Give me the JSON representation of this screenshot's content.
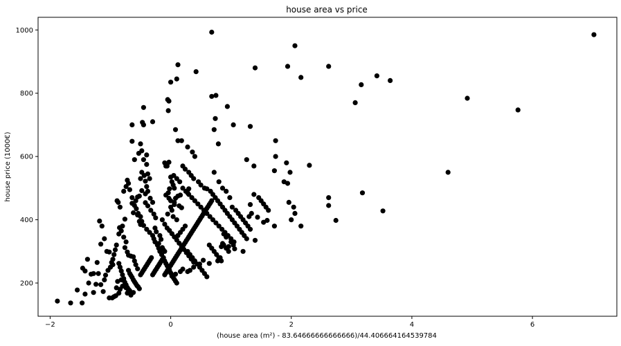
{
  "chart_data": {
    "type": "scatter",
    "title": "house area vs price",
    "xlabel": "(house area (m²) - 83.64666666666666)/44.406664164539784",
    "ylabel": "house price (1000€)",
    "xlim": [
      -2.2,
      7.4
    ],
    "ylim": [
      95,
      1040
    ],
    "xticks": [
      -2,
      0,
      2,
      4,
      6
    ],
    "xtick_labels": [
      "−2",
      "0",
      "2",
      "4",
      "6"
    ],
    "yticks": [
      200,
      400,
      600,
      800,
      1000
    ],
    "ytick_labels": [
      "200",
      "400",
      "600",
      "800",
      "1000"
    ],
    "grid": false,
    "legend": "none",
    "marker_color": "#000000",
    "points": [
      [
        -1.88,
        143
      ],
      [
        -1.66,
        137
      ],
      [
        -1.47,
        137
      ],
      [
        -1.55,
        178
      ],
      [
        -1.42,
        165
      ],
      [
        -1.36,
        200
      ],
      [
        -1.46,
        247
      ],
      [
        -1.42,
        238
      ],
      [
        -1.38,
        275
      ],
      [
        -1.32,
        228
      ],
      [
        -1.22,
        265
      ],
      [
        -1.28,
        230
      ],
      [
        -1.2,
        230
      ],
      [
        -1.14,
        380
      ],
      [
        -1.18,
        396
      ],
      [
        -1.16,
        323
      ],
      [
        -1.1,
        340
      ],
      [
        -1.06,
        300
      ],
      [
        -1.02,
        298
      ],
      [
        -1.12,
        173
      ],
      [
        -1.28,
        170
      ],
      [
        -1.24,
        196
      ],
      [
        -0.96,
        258
      ],
      [
        -1.02,
        153
      ],
      [
        -0.97,
        153
      ],
      [
        -0.94,
        157
      ],
      [
        -0.91,
        160
      ],
      [
        -0.86,
        168
      ],
      [
        -0.88,
        205
      ],
      [
        -0.82,
        210
      ],
      [
        -0.78,
        208
      ],
      [
        -0.74,
        185
      ],
      [
        -0.7,
        178
      ],
      [
        -0.66,
        162
      ],
      [
        -0.62,
        170
      ],
      [
        -0.9,
        185
      ],
      [
        -0.84,
        180
      ],
      [
        -0.8,
        190
      ],
      [
        -0.76,
        195
      ],
      [
        -0.72,
        168
      ],
      [
        -0.68,
        172
      ],
      [
        -0.89,
        460
      ],
      [
        -0.87,
        455
      ],
      [
        -0.84,
        440
      ],
      [
        -0.85,
        375
      ],
      [
        -0.82,
        365
      ],
      [
        -0.8,
        380
      ],
      [
        -0.86,
        355
      ],
      [
        -0.78,
        345
      ],
      [
        -0.74,
        330
      ],
      [
        -0.76,
        312
      ],
      [
        -0.72,
        298
      ],
      [
        -0.7,
        288
      ],
      [
        -0.66,
        285
      ],
      [
        -0.62,
        283
      ],
      [
        -0.6,
        270
      ],
      [
        -0.58,
        258
      ],
      [
        -0.55,
        245
      ],
      [
        -0.78,
        490
      ],
      [
        -0.74,
        505
      ],
      [
        -0.72,
        525
      ],
      [
        -0.7,
        515
      ],
      [
        -0.68,
        495
      ],
      [
        -0.64,
        470
      ],
      [
        -0.6,
        445
      ],
      [
        -0.57,
        435
      ],
      [
        -0.54,
        420
      ],
      [
        -0.52,
        395
      ],
      [
        -0.5,
        385
      ],
      [
        -0.76,
        402
      ],
      [
        -0.62,
        422
      ],
      [
        -0.64,
        452
      ],
      [
        -0.58,
        460
      ],
      [
        -0.55,
        472
      ],
      [
        -0.52,
        475
      ],
      [
        -0.48,
        492
      ],
      [
        -0.5,
        530
      ],
      [
        -0.6,
        590
      ],
      [
        -0.53,
        610
      ],
      [
        -0.48,
        618
      ],
      [
        -0.45,
        590
      ],
      [
        -0.4,
        575
      ],
      [
        -0.38,
        545
      ],
      [
        -0.35,
        530
      ],
      [
        -0.64,
        648
      ],
      [
        -0.47,
        708
      ],
      [
        -0.45,
        700
      ],
      [
        -0.64,
        700
      ],
      [
        -0.5,
        640
      ],
      [
        -0.48,
        550
      ],
      [
        -0.44,
        540
      ],
      [
        -0.42,
        522
      ],
      [
        -0.4,
        505
      ],
      [
        -0.38,
        490
      ],
      [
        -0.42,
        482
      ],
      [
        -0.34,
        468
      ],
      [
        -0.3,
        455
      ],
      [
        -0.33,
        430
      ],
      [
        -0.28,
        418
      ],
      [
        -0.25,
        406
      ],
      [
        -0.42,
        454
      ],
      [
        -0.38,
        444
      ],
      [
        -0.26,
        374
      ],
      [
        -0.24,
        362
      ],
      [
        -0.18,
        350
      ],
      [
        -0.16,
        338
      ],
      [
        -0.2,
        325
      ],
      [
        -0.14,
        312
      ],
      [
        -0.12,
        305
      ],
      [
        -0.1,
        300
      ],
      [
        -0.45,
        755
      ],
      [
        -0.3,
        710
      ],
      [
        -0.4,
        605
      ],
      [
        -0.1,
        580
      ],
      [
        -0.08,
        570
      ],
      [
        0.0,
        535
      ],
      [
        0.02,
        520
      ],
      [
        0.04,
        510
      ],
      [
        0.06,
        500
      ],
      [
        -0.02,
        498
      ],
      [
        -0.04,
        485
      ],
      [
        -0.08,
        478
      ],
      [
        -0.03,
        468
      ],
      [
        0.0,
        460
      ],
      [
        0.06,
        455
      ],
      [
        0.0,
        440
      ],
      [
        0.02,
        430
      ],
      [
        -0.05,
        418
      ],
      [
        0.04,
        410
      ],
      [
        0.1,
        400
      ],
      [
        -0.55,
        415
      ],
      [
        -0.5,
        410
      ],
      [
        -0.48,
        395
      ],
      [
        -0.45,
        382
      ],
      [
        -0.4,
        370
      ],
      [
        -0.35,
        360
      ],
      [
        -0.3,
        350
      ],
      [
        -0.28,
        340
      ],
      [
        -0.26,
        330
      ],
      [
        -0.22,
        320
      ],
      [
        -0.2,
        310
      ],
      [
        -0.18,
        300
      ],
      [
        -0.15,
        290
      ],
      [
        -0.12,
        280
      ],
      [
        -0.1,
        270
      ],
      [
        -0.08,
        262
      ],
      [
        -0.06,
        255
      ],
      [
        -0.04,
        248
      ],
      [
        -0.02,
        240
      ],
      [
        0.0,
        232
      ],
      [
        0.02,
        225
      ],
      [
        0.04,
        218
      ],
      [
        0.06,
        212
      ],
      [
        0.08,
        206
      ],
      [
        0.1,
        200
      ],
      [
        -0.7,
        240
      ],
      [
        -0.68,
        230
      ],
      [
        -0.66,
        224
      ],
      [
        -0.64,
        218
      ],
      [
        -0.62,
        210
      ],
      [
        -0.6,
        204
      ],
      [
        -0.58,
        198
      ],
      [
        -0.56,
        192
      ],
      [
        -0.54,
        188
      ],
      [
        -0.52,
        182
      ],
      [
        -0.5,
        226
      ],
      [
        -0.48,
        232
      ],
      [
        -0.46,
        238
      ],
      [
        -0.44,
        244
      ],
      [
        -0.42,
        250
      ],
      [
        -0.4,
        256
      ],
      [
        -0.38,
        262
      ],
      [
        -0.36,
        268
      ],
      [
        -0.34,
        274
      ],
      [
        -0.32,
        280
      ],
      [
        -0.3,
        226
      ],
      [
        -0.28,
        232
      ],
      [
        -0.26,
        238
      ],
      [
        -0.24,
        244
      ],
      [
        -0.22,
        250
      ],
      [
        -0.2,
        256
      ],
      [
        -0.18,
        262
      ],
      [
        -0.16,
        268
      ],
      [
        -0.14,
        274
      ],
      [
        -0.12,
        280
      ],
      [
        -0.1,
        226
      ],
      [
        -0.08,
        232
      ],
      [
        -0.06,
        238
      ],
      [
        -0.04,
        244
      ],
      [
        -0.02,
        250
      ],
      [
        0.0,
        256
      ],
      [
        0.02,
        262
      ],
      [
        0.04,
        268
      ],
      [
        0.06,
        274
      ],
      [
        0.08,
        280
      ],
      [
        0.1,
        286
      ],
      [
        0.12,
        292
      ],
      [
        0.14,
        298
      ],
      [
        0.16,
        304
      ],
      [
        0.18,
        310
      ],
      [
        0.2,
        316
      ],
      [
        0.22,
        322
      ],
      [
        0.24,
        328
      ],
      [
        0.26,
        334
      ],
      [
        0.28,
        340
      ],
      [
        0.3,
        346
      ],
      [
        0.32,
        352
      ],
      [
        0.34,
        358
      ],
      [
        0.36,
        364
      ],
      [
        0.38,
        370
      ],
      [
        0.4,
        376
      ],
      [
        0.42,
        382
      ],
      [
        0.44,
        388
      ],
      [
        0.46,
        394
      ],
      [
        0.48,
        400
      ],
      [
        0.5,
        406
      ],
      [
        0.52,
        412
      ],
      [
        0.54,
        418
      ],
      [
        0.56,
        424
      ],
      [
        0.58,
        430
      ],
      [
        0.6,
        436
      ],
      [
        0.62,
        442
      ],
      [
        0.64,
        448
      ],
      [
        0.66,
        454
      ],
      [
        0.68,
        460
      ],
      [
        -0.03,
        582
      ],
      [
        -0.06,
        570
      ],
      [
        0.05,
        540
      ],
      [
        0.1,
        530
      ],
      [
        0.15,
        520
      ],
      [
        0.2,
        500
      ],
      [
        0.25,
        490
      ],
      [
        0.3,
        480
      ],
      [
        0.35,
        470
      ],
      [
        0.4,
        460
      ],
      [
        0.45,
        450
      ],
      [
        0.5,
        440
      ],
      [
        0.55,
        430
      ],
      [
        0.6,
        420
      ],
      [
        0.65,
        410
      ],
      [
        0.7,
        400
      ],
      [
        0.75,
        390
      ],
      [
        0.8,
        380
      ],
      [
        0.85,
        370
      ],
      [
        0.9,
        360
      ],
      [
        0.95,
        350
      ],
      [
        1.0,
        340
      ],
      [
        1.05,
        330
      ],
      [
        0.12,
        350
      ],
      [
        0.16,
        360
      ],
      [
        0.2,
        370
      ],
      [
        0.24,
        380
      ],
      [
        0.28,
        300
      ],
      [
        0.32,
        290
      ],
      [
        0.36,
        280
      ],
      [
        0.4,
        270
      ],
      [
        0.44,
        260
      ],
      [
        0.48,
        250
      ],
      [
        0.52,
        240
      ],
      [
        0.56,
        230
      ],
      [
        0.6,
        220
      ],
      [
        0.64,
        320
      ],
      [
        0.68,
        310
      ],
      [
        0.72,
        300
      ],
      [
        0.76,
        290
      ],
      [
        0.8,
        280
      ],
      [
        0.84,
        270
      ],
      [
        0.88,
        320
      ],
      [
        0.92,
        310
      ],
      [
        0.96,
        300
      ],
      [
        0.12,
        650
      ],
      [
        0.18,
        650
      ],
      [
        0.28,
        630
      ],
      [
        0.36,
        614
      ],
      [
        0.4,
        600
      ],
      [
        0.2,
        570
      ],
      [
        0.24,
        560
      ],
      [
        0.3,
        550
      ],
      [
        0.34,
        540
      ],
      [
        0.38,
        530
      ],
      [
        0.46,
        520
      ],
      [
        0.5,
        510
      ],
      [
        0.56,
        500
      ],
      [
        0.6,
        498
      ],
      [
        0.66,
        490
      ],
      [
        0.7,
        480
      ],
      [
        0.74,
        470
      ],
      [
        0.78,
        460
      ],
      [
        0.82,
        450
      ],
      [
        0.86,
        440
      ],
      [
        0.9,
        430
      ],
      [
        0.94,
        420
      ],
      [
        0.98,
        410
      ],
      [
        1.02,
        400
      ],
      [
        1.06,
        390
      ],
      [
        1.1,
        380
      ],
      [
        1.14,
        370
      ],
      [
        1.18,
        360
      ],
      [
        1.22,
        350
      ],
      [
        1.26,
        340
      ],
      [
        0.08,
        685
      ],
      [
        0.42,
        868
      ],
      [
        0.74,
        720
      ],
      [
        0.72,
        685
      ],
      [
        0.79,
        640
      ],
      [
        0.72,
        550
      ],
      [
        0.8,
        520
      ],
      [
        0.86,
        500
      ],
      [
        0.92,
        490
      ],
      [
        0.98,
        470
      ],
      [
        1.02,
        440
      ],
      [
        1.08,
        430
      ],
      [
        1.12,
        420
      ],
      [
        1.16,
        410
      ],
      [
        1.2,
        400
      ],
      [
        1.24,
        390
      ],
      [
        1.28,
        380
      ],
      [
        1.32,
        370
      ],
      [
        0.68,
        790
      ],
      [
        0.75,
        793
      ],
      [
        0.94,
        758
      ],
      [
        1.04,
        700
      ],
      [
        1.32,
        695
      ],
      [
        1.38,
        570
      ],
      [
        1.26,
        590
      ],
      [
        1.38,
        480
      ],
      [
        1.46,
        470
      ],
      [
        1.5,
        460
      ],
      [
        1.54,
        450
      ],
      [
        1.58,
        440
      ],
      [
        1.62,
        430
      ],
      [
        1.6,
        398
      ],
      [
        1.54,
        392
      ],
      [
        1.44,
        408
      ],
      [
        1.72,
        380
      ],
      [
        1.34,
        420
      ],
      [
        1.3,
        410
      ],
      [
        1.32,
        448
      ],
      [
        1.4,
        335
      ],
      [
        1.2,
        300
      ],
      [
        1.04,
        320
      ],
      [
        1.06,
        308
      ],
      [
        1.0,
        330
      ],
      [
        0.96,
        315
      ],
      [
        0.92,
        345
      ],
      [
        0.88,
        355
      ],
      [
        0.86,
        325
      ],
      [
        0.84,
        315
      ],
      [
        0.82,
        280
      ],
      [
        0.78,
        270
      ],
      [
        0.64,
        262
      ],
      [
        0.54,
        272
      ],
      [
        0.48,
        260
      ],
      [
        0.38,
        250
      ],
      [
        0.32,
        240
      ],
      [
        0.28,
        236
      ],
      [
        0.2,
        244
      ],
      [
        0.16,
        236
      ],
      [
        0.08,
        228
      ],
      [
        0.02,
        222
      ],
      [
        1.74,
        650
      ],
      [
        1.74,
        600
      ],
      [
        1.72,
        555
      ],
      [
        1.88,
        520
      ],
      [
        1.92,
        580
      ],
      [
        1.98,
        550
      ],
      [
        1.94,
        515
      ],
      [
        1.96,
        455
      ],
      [
        2.04,
        440
      ],
      [
        2.06,
        420
      ],
      [
        2.0,
        400
      ],
      [
        2.16,
        380
      ],
      [
        2.3,
        572
      ],
      [
        2.62,
        470
      ],
      [
        2.62,
        445
      ],
      [
        2.74,
        398
      ],
      [
        1.94,
        885
      ],
      [
        2.06,
        950
      ],
      [
        2.16,
        850
      ],
      [
        2.62,
        885
      ],
      [
        3.06,
        770
      ],
      [
        3.16,
        827
      ],
      [
        3.18,
        485
      ],
      [
        3.42,
        855
      ],
      [
        3.52,
        428
      ],
      [
        3.64,
        840
      ],
      [
        4.6,
        550
      ],
      [
        4.92,
        784
      ],
      [
        5.76,
        747
      ],
      [
        7.02,
        985
      ],
      [
        0.68,
        993
      ],
      [
        0.12,
        890
      ],
      [
        1.4,
        880
      ],
      [
        0.0,
        835
      ],
      [
        0.1,
        845
      ],
      [
        -0.05,
        780
      ],
      [
        -0.04,
        745
      ],
      [
        -0.03,
        775
      ],
      [
        0.28,
        485
      ],
      [
        0.3,
        498
      ],
      [
        0.12,
        475
      ],
      [
        0.16,
        478
      ],
      [
        0.08,
        468
      ],
      [
        0.06,
        448
      ],
      [
        0.14,
        444
      ],
      [
        0.18,
        438
      ],
      [
        -0.14,
        400
      ],
      [
        -0.1,
        386
      ],
      [
        -0.06,
        374
      ],
      [
        -0.02,
        366
      ],
      [
        0.02,
        356
      ],
      [
        0.06,
        346
      ],
      [
        0.1,
        336
      ],
      [
        0.14,
        326
      ],
      [
        0.18,
        316
      ],
      [
        0.22,
        306
      ],
      [
        0.26,
        296
      ],
      [
        0.3,
        286
      ],
      [
        0.34,
        276
      ],
      [
        0.38,
        266
      ],
      [
        -0.9,
        320
      ],
      [
        -0.92,
        305
      ],
      [
        -0.94,
        290
      ],
      [
        -0.96,
        275
      ],
      [
        -0.98,
        265
      ],
      [
        -1.0,
        250
      ],
      [
        -1.04,
        240
      ],
      [
        -1.08,
        225
      ],
      [
        -1.1,
        210
      ],
      [
        -1.16,
        195
      ],
      [
        -0.86,
        262
      ],
      [
        -0.84,
        250
      ],
      [
        -0.82,
        238
      ],
      [
        -0.8,
        226
      ],
      [
        -0.78,
        214
      ],
      [
        -0.76,
        202
      ],
      [
        -0.74,
        194
      ],
      [
        -0.72,
        186
      ],
      [
        -0.7,
        180
      ],
      [
        -0.68,
        176
      ]
    ]
  }
}
